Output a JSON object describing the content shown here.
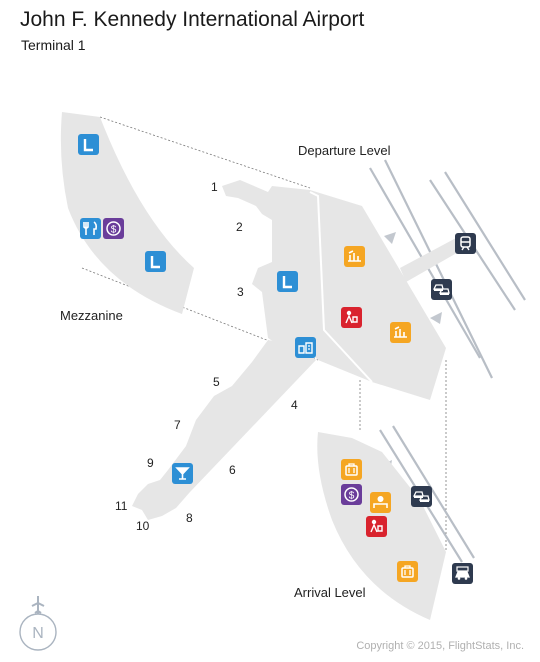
{
  "title": "John F. Kennedy International Airport",
  "subtitle": "Terminal 1",
  "copyright": "Copyright © 2015, FlightStats, Inc.",
  "levels": {
    "departure": "Departure Level",
    "mezzanine": "Mezzanine",
    "arrival": "Arrival Level"
  },
  "gates": [
    "1",
    "2",
    "3",
    "4",
    "5",
    "6",
    "7",
    "8",
    "9",
    "10",
    "11"
  ],
  "compass": {
    "letter": "N"
  },
  "colors": {
    "building": "#e6e6e6",
    "lounge_blue": "#2d8fd5",
    "dining_blue": "#2d8fd5",
    "currency_purple": "#6a3d9a",
    "checkin_orange": "#f5a623",
    "services_red": "#d9232e",
    "transport_navy": "#2e3a4f",
    "bar_blue": "#2d8fd5",
    "street_gray": "#b8bec6"
  },
  "icons": [
    "lounge-icon",
    "restaurant-icon",
    "currency-exchange-icon",
    "lounge-icon",
    "checkin-icon",
    "customer-service-icon",
    "checkin-icon",
    "train-icon",
    "taxi-icon",
    "lounge-icon",
    "restrooms-icon",
    "bar-icon",
    "baggage-claim-icon",
    "currency-exchange-icon",
    "information-icon",
    "customer-service-icon",
    "taxi-icon",
    "baggage-claim-icon",
    "ground-transport-icon"
  ]
}
